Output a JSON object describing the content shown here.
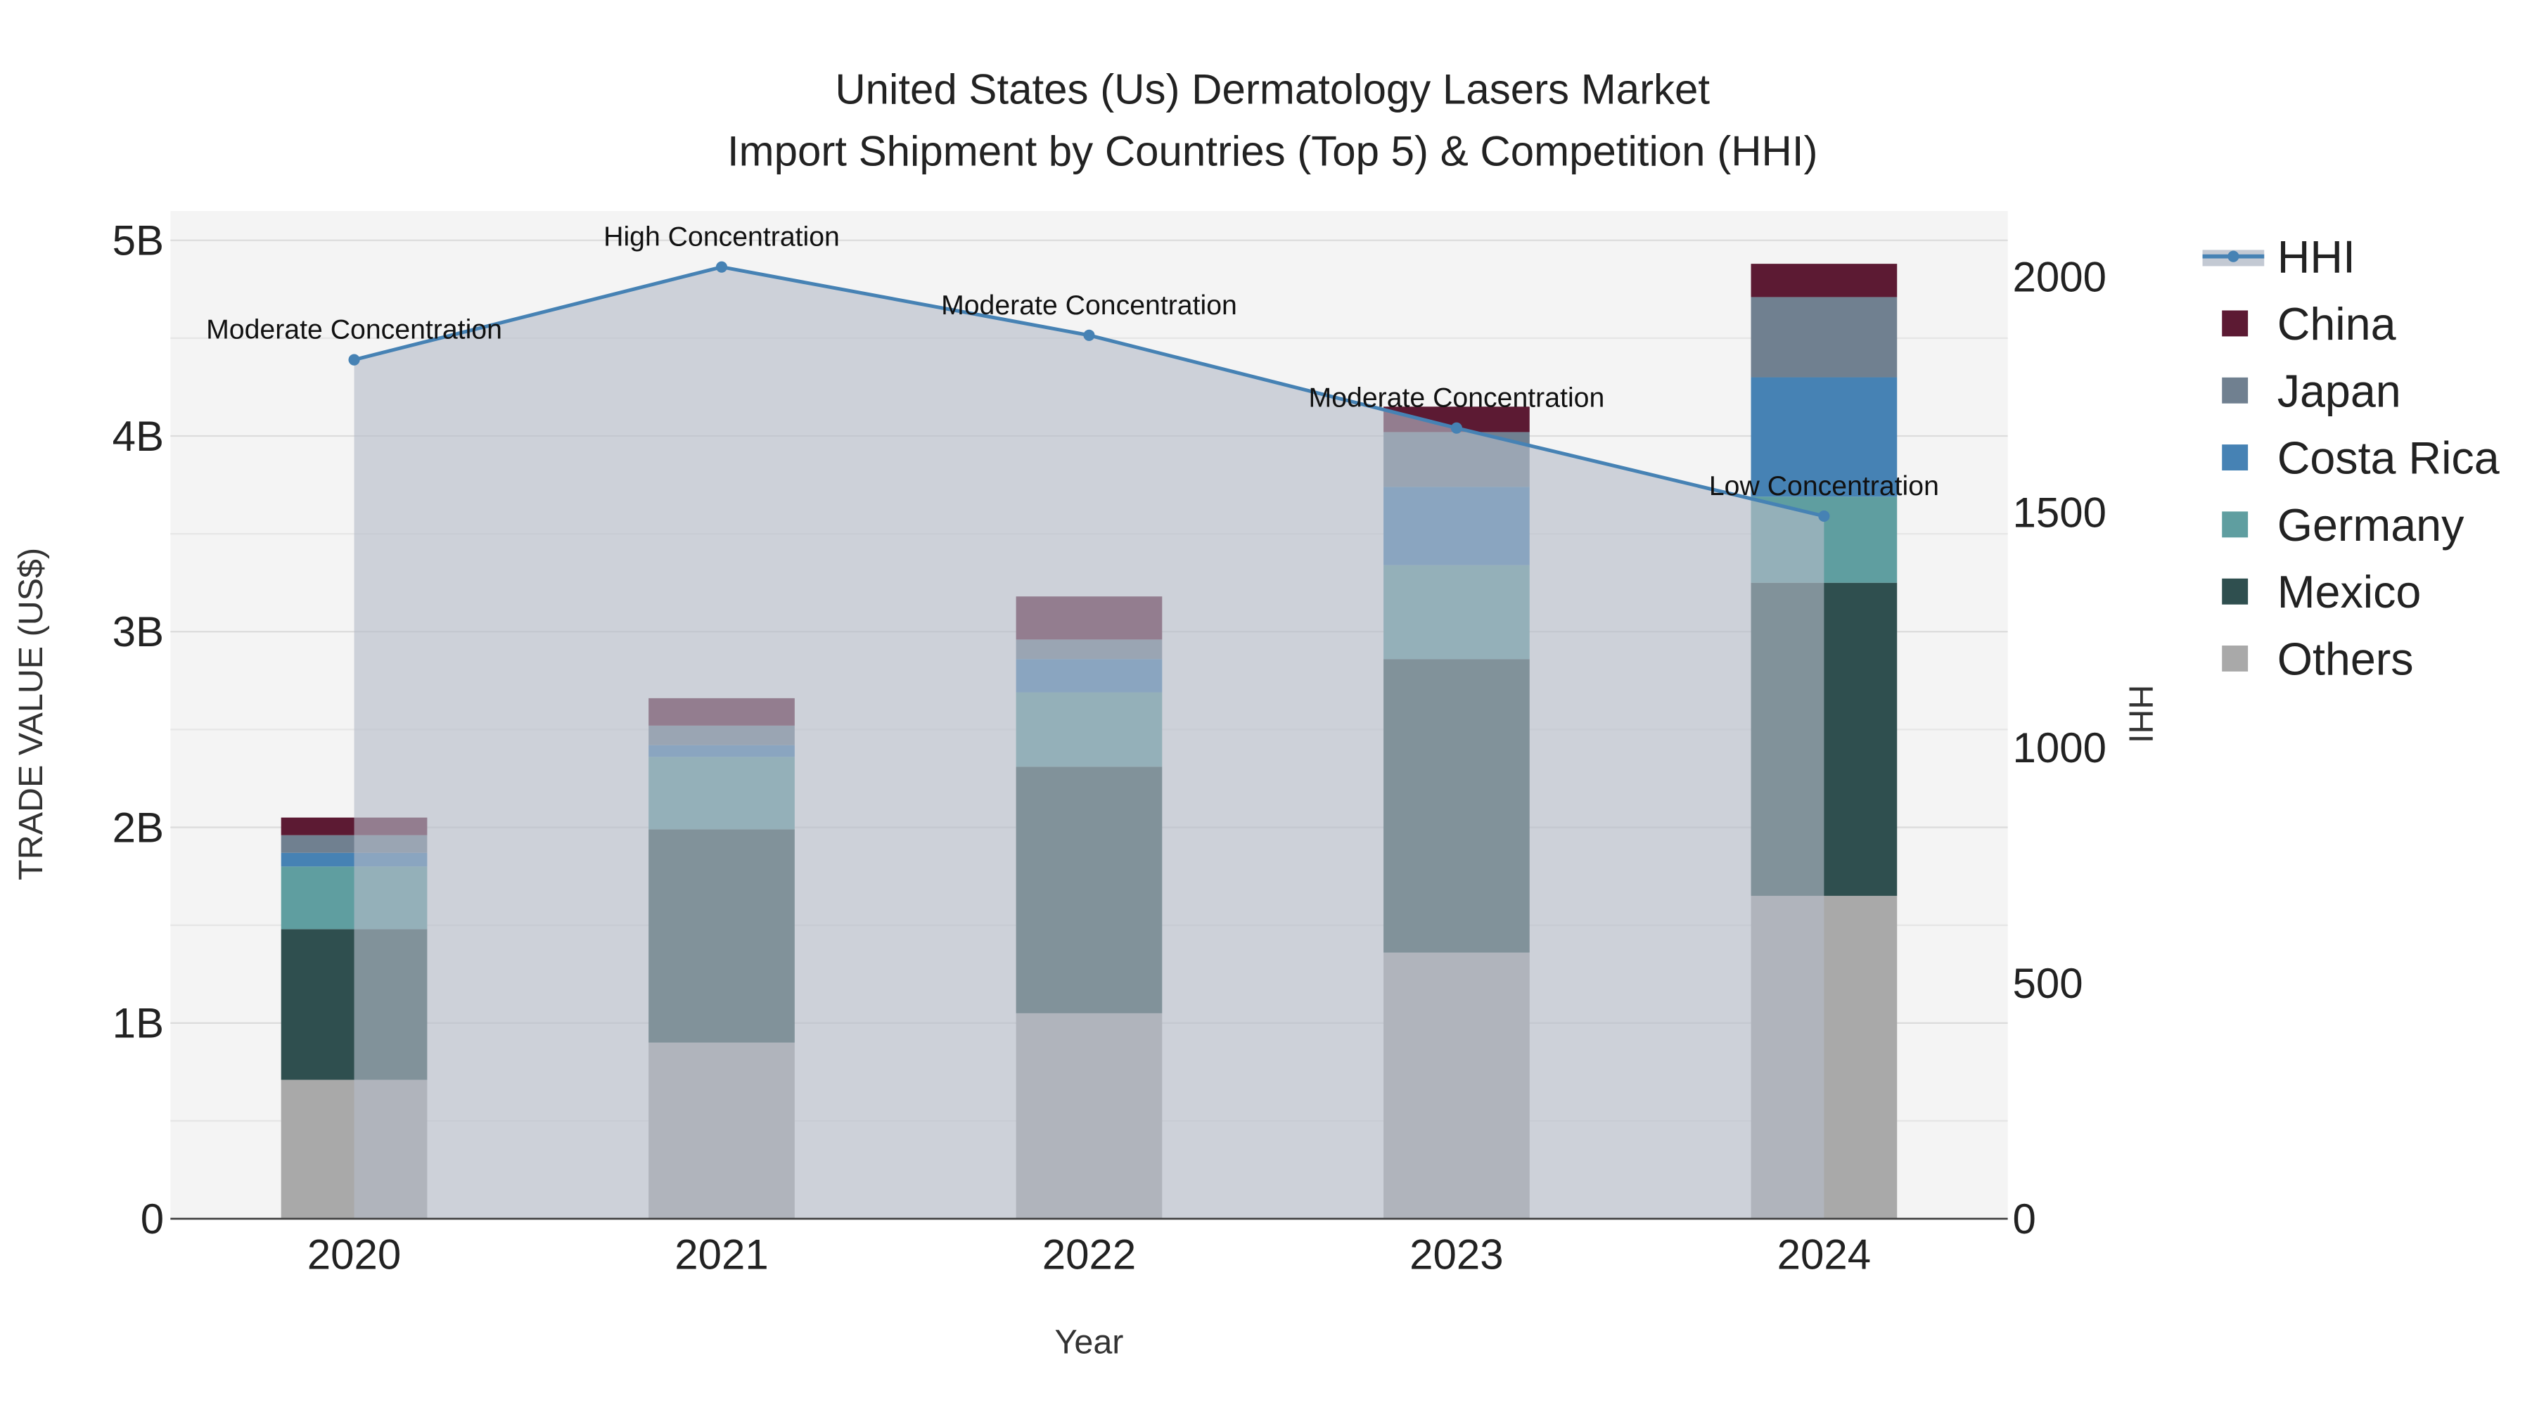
{
  "chart_data": {
    "type": "bar",
    "title": "United States (Us) Dermatology Lasers Market",
    "subtitle": "Import Shipment by Countries (Top 5) & Competition (HHI)",
    "xlabel": "Year",
    "ylabel": "TRADE VALUE (US$)",
    "y2label": "HHI",
    "categories": [
      "2020",
      "2021",
      "2022",
      "2023",
      "2024"
    ],
    "ylim": [
      0,
      5.15
    ],
    "y2lim": [
      0,
      2140
    ],
    "yticks": [
      {
        "v": 0,
        "label": "0"
      },
      {
        "v": 1,
        "label": "1B"
      },
      {
        "v": 2,
        "label": "2B"
      },
      {
        "v": 3,
        "label": "3B"
      },
      {
        "v": 4,
        "label": "4B"
      },
      {
        "v": 5,
        "label": "5B"
      }
    ],
    "y2ticks": [
      {
        "v": 0,
        "label": "0"
      },
      {
        "v": 500,
        "label": "500"
      },
      {
        "v": 1000,
        "label": "1000"
      },
      {
        "v": 1500,
        "label": "1500"
      },
      {
        "v": 2000,
        "label": "2000"
      }
    ],
    "units": "billion US$",
    "series": [
      {
        "name": "Others",
        "color": "#a9a9a9",
        "values": [
          0.71,
          0.9,
          1.05,
          1.36,
          1.65
        ]
      },
      {
        "name": "Mexico",
        "color": "#2f4f4f",
        "values": [
          0.77,
          1.09,
          1.26,
          1.5,
          1.6
        ]
      },
      {
        "name": "Germany",
        "color": "#5f9ea0",
        "values": [
          0.32,
          0.37,
          0.38,
          0.48,
          0.44
        ]
      },
      {
        "name": "Costa Rica",
        "color": "#4682b4",
        "values": [
          0.07,
          0.06,
          0.17,
          0.4,
          0.61
        ]
      },
      {
        "name": "Japan",
        "color": "#708090",
        "values": [
          0.09,
          0.1,
          0.1,
          0.28,
          0.41
        ]
      },
      {
        "name": "China",
        "color": "#5c1a33",
        "values": [
          0.09,
          0.14,
          0.22,
          0.13,
          0.17
        ]
      }
    ],
    "hhi": {
      "name": "HHI",
      "color": "#4682b4",
      "values": [
        1824,
        2021,
        1876,
        1679,
        1492
      ],
      "annotations": [
        "Moderate Concentration",
        "High Concentration",
        "Moderate Concentration",
        "Moderate Concentration",
        "Low Concentration"
      ]
    },
    "legend": [
      "HHI",
      "China",
      "Japan",
      "Costa Rica",
      "Germany",
      "Mexico",
      "Others"
    ],
    "legend_position": "right",
    "grid": true
  }
}
